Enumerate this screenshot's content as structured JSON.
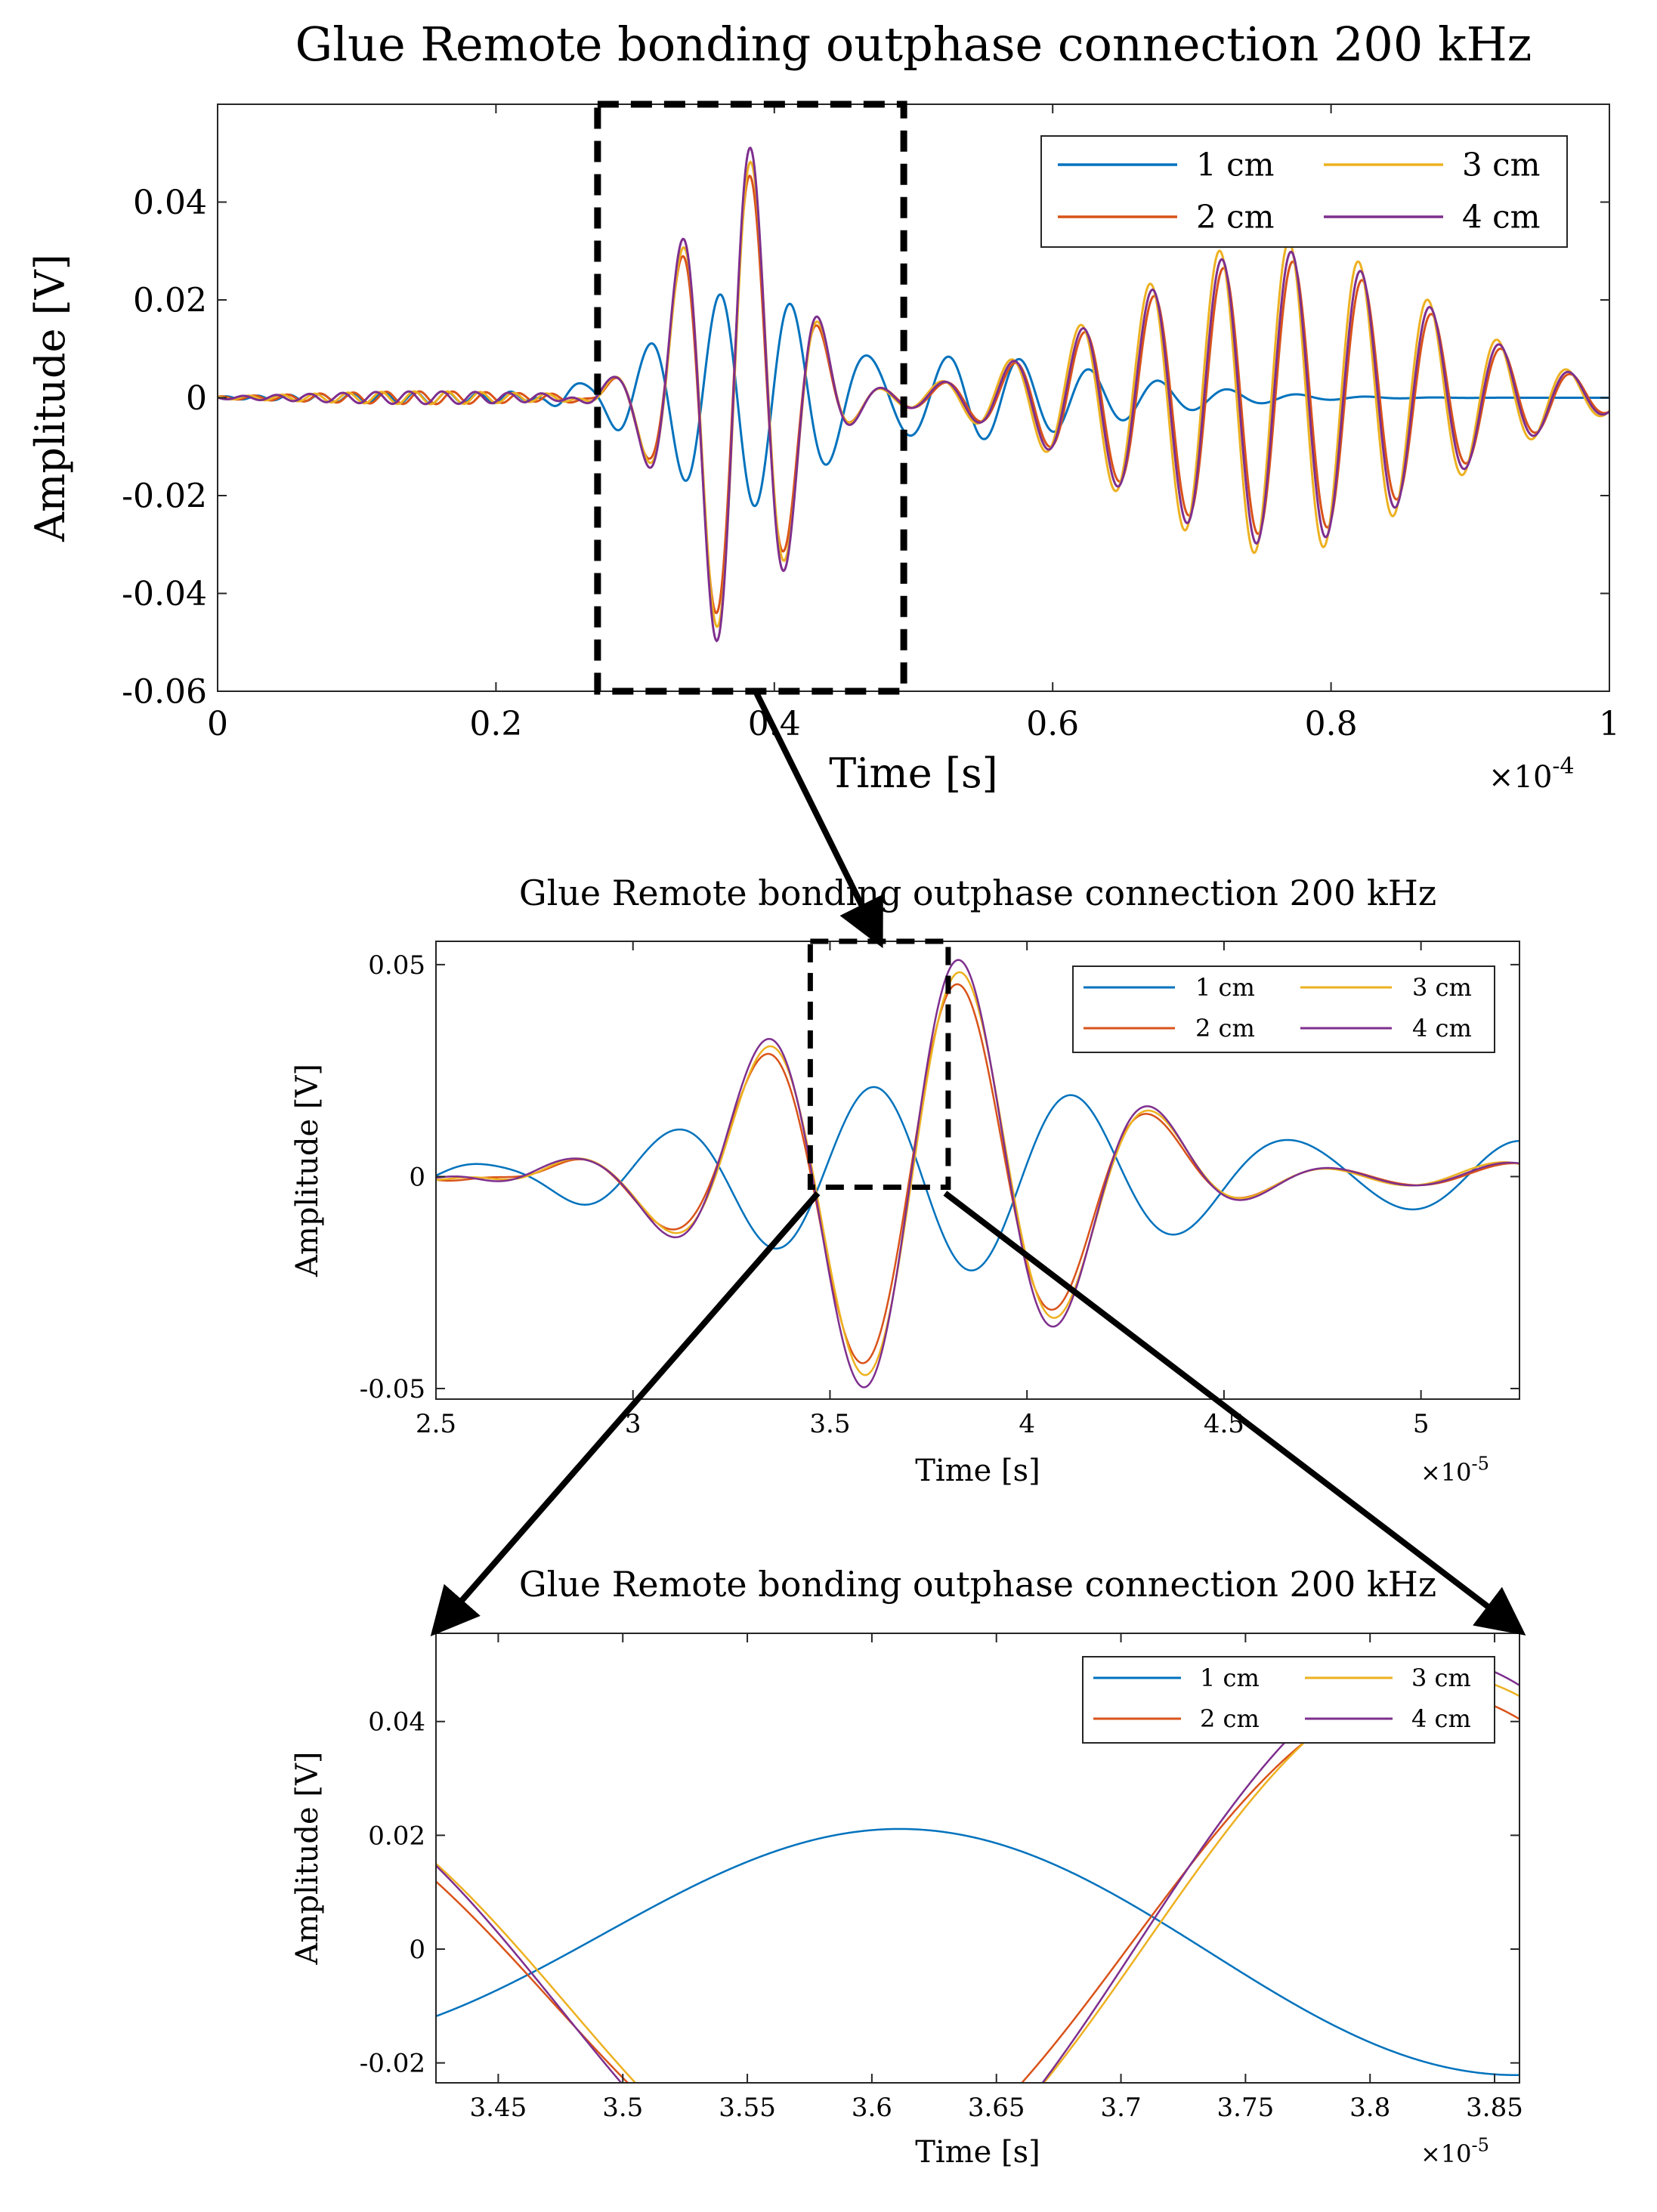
{
  "chart_data": [
    {
      "type": "line",
      "title": "Glue Remote bonding outphase connection 200 kHz",
      "xlabel": "Time [s]",
      "ylabel": "Amplitude [V]",
      "x_multiplier": "×10",
      "x_exponent": "-4",
      "xlim": [
        0,
        0.0001
      ],
      "ylim": [
        -0.06,
        0.06
      ],
      "x_ticks": [
        0,
        2e-05,
        4e-05,
        6e-05,
        8e-05,
        0.0001
      ],
      "x_tick_labels": [
        "0",
        "0.2",
        "0.4",
        "0.6",
        "0.8",
        "1"
      ],
      "y_ticks": [
        -0.06,
        -0.04,
        -0.02,
        0,
        0.02,
        0.04
      ],
      "y_tick_labels": [
        "-0.06",
        "-0.04",
        "-0.02",
        "0",
        "0.02",
        "0.04"
      ],
      "legend_position": "top-right",
      "series": [
        {
          "name": "1 cm",
          "color": "#0072BD"
        },
        {
          "name": "2 cm",
          "color": "#D95319"
        },
        {
          "name": "3 cm",
          "color": "#EDB120"
        },
        {
          "name": "4 cm",
          "color": "#7E2F8E"
        }
      ],
      "zoom_box": {
        "x": [
          2.73e-05,
          4.93e-05
        ],
        "y": [
          -0.06,
          0.06
        ]
      }
    },
    {
      "type": "line",
      "title": "Glue Remote bonding outphase connection 200 kHz",
      "xlabel": "Time [s]",
      "ylabel": "Amplitude [V]",
      "x_multiplier": "×10",
      "x_exponent": "-5",
      "xlim": [
        2.5e-05,
        5.25e-05
      ],
      "ylim": [
        -0.0525,
        0.0555
      ],
      "x_ticks": [
        2.5e-05,
        3e-05,
        3.5e-05,
        4e-05,
        4.5e-05,
        5e-05
      ],
      "x_tick_labels": [
        "2.5",
        "3",
        "3.5",
        "4",
        "4.5",
        "5"
      ],
      "y_ticks": [
        -0.05,
        0,
        0.05
      ],
      "y_tick_labels": [
        "-0.05",
        "0",
        "0.05"
      ],
      "legend_position": "top-right",
      "series": [
        {
          "name": "1 cm",
          "color": "#0072BD"
        },
        {
          "name": "2 cm",
          "color": "#D95319"
        },
        {
          "name": "3 cm",
          "color": "#EDB120"
        },
        {
          "name": "4 cm",
          "color": "#7E2F8E"
        }
      ],
      "zoom_box": {
        "x": [
          3.45e-05,
          3.8e-05
        ],
        "y": [
          -0.0025,
          0.0555
        ]
      }
    },
    {
      "type": "line",
      "title": "Glue Remote bonding outphase connection 200 kHz",
      "xlabel": "Time [s]",
      "ylabel": "Amplitude [V]",
      "x_multiplier": "×10",
      "x_exponent": "-5",
      "xlim": [
        3.425e-05,
        3.86e-05
      ],
      "ylim": [
        -0.0235,
        0.0555
      ],
      "x_ticks": [
        3.45e-05,
        3.5e-05,
        3.55e-05,
        3.6e-05,
        3.65e-05,
        3.7e-05,
        3.75e-05,
        3.8e-05,
        3.85e-05
      ],
      "x_tick_labels": [
        "3.45",
        "3.5",
        "3.55",
        "3.6",
        "3.65",
        "3.7",
        "3.75",
        "3.8",
        "3.85"
      ],
      "y_ticks": [
        -0.02,
        0,
        0.02,
        0.04
      ],
      "y_tick_labels": [
        "-0.02",
        "0",
        "0.02",
        "0.04"
      ],
      "legend_position": "top-right",
      "series": [
        {
          "name": "1 cm",
          "color": "#0072BD"
        },
        {
          "name": "2 cm",
          "color": "#D95319"
        },
        {
          "name": "3 cm",
          "color": "#EDB120"
        },
        {
          "name": "4 cm",
          "color": "#7E2F8E"
        }
      ]
    }
  ]
}
